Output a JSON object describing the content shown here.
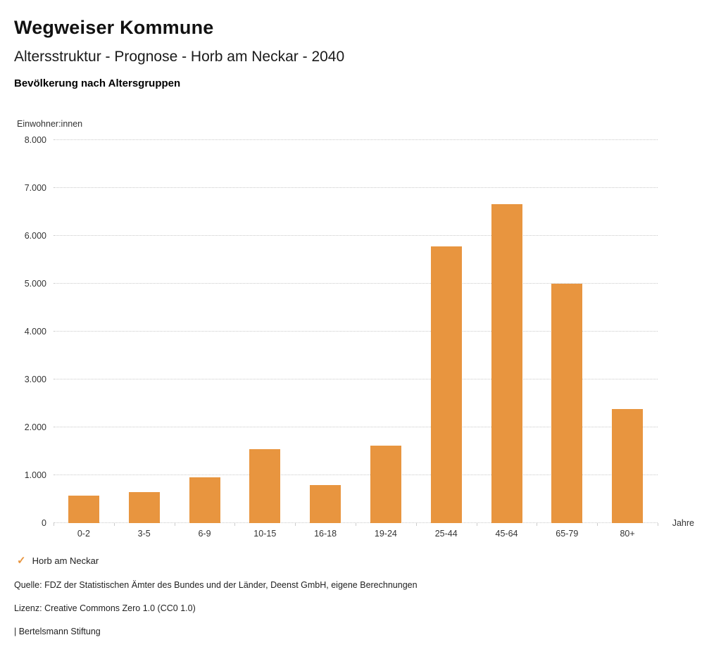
{
  "header": {
    "title": "Wegweiser Kommune",
    "subtitle": "Altersstruktur - Prognose - Horb am Neckar - 2040",
    "chart_heading": "Bevölkerung nach Altersgruppen"
  },
  "chart_data": {
    "type": "bar",
    "title": "Bevölkerung nach Altersgruppen",
    "categories": [
      "0-2",
      "3-5",
      "6-9",
      "10-15",
      "16-18",
      "19-24",
      "25-44",
      "45-64",
      "65-79",
      "80+"
    ],
    "values": [
      570,
      640,
      950,
      1550,
      800,
      1620,
      5780,
      6660,
      5000,
      2380
    ],
    "series_name": "Horb am Neckar",
    "xlabel": "Jahre",
    "ylabel": "Einwohner:innen",
    "ylim": [
      0,
      8000
    ],
    "yticks": [
      "0",
      "1.000",
      "2.000",
      "3.000",
      "4.000",
      "5.000",
      "6.000",
      "7.000",
      "8.000"
    ],
    "grid": true,
    "bar_color": "#E8953F"
  },
  "legend": {
    "checkmark": "✓",
    "label": "Horb am Neckar"
  },
  "footer": {
    "source": "Quelle: FDZ der Statistischen Ämter des Bundes und der Länder, Deenst GmbH, eigene Berechnungen",
    "license": "Lizenz: Creative Commons Zero 1.0 (CC0 1.0)",
    "attribution": "| Bertelsmann Stiftung"
  }
}
